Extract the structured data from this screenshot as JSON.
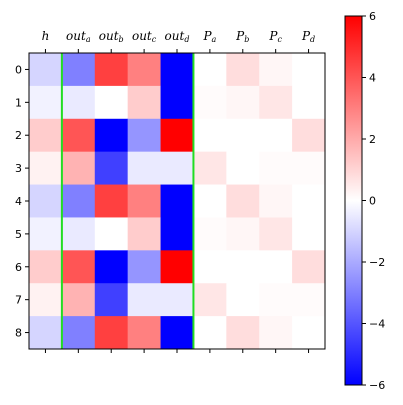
{
  "chart_data": {
    "type": "heatmap",
    "colormap": "bwr",
    "x_labels": [
      {
        "base": "h",
        "sub": ""
      },
      {
        "base": "out",
        "sub": "a"
      },
      {
        "base": "out",
        "sub": "b"
      },
      {
        "base": "out",
        "sub": "c"
      },
      {
        "base": "out",
        "sub": "d"
      },
      {
        "base": "P",
        "sub": "a"
      },
      {
        "base": "P",
        "sub": "b"
      },
      {
        "base": "P",
        "sub": "c"
      },
      {
        "base": "P",
        "sub": "d"
      }
    ],
    "y_labels": [
      "0",
      "1",
      "2",
      "3",
      "4",
      "5",
      "6",
      "7",
      "8"
    ],
    "values": [
      [
        -1.0,
        -3.0,
        4.5,
        3.0,
        -6.0,
        0.0,
        0.8,
        0.2,
        0.0
      ],
      [
        -0.3,
        -0.5,
        0.0,
        1.2,
        -6.0,
        0.1,
        0.2,
        0.6,
        0.0
      ],
      [
        1.2,
        4.0,
        -6.0,
        -2.5,
        6.0,
        0.0,
        0.0,
        0.0,
        0.8
      ],
      [
        0.3,
        1.8,
        -4.5,
        -0.5,
        -0.5,
        0.6,
        0.0,
        0.1,
        0.1
      ],
      [
        -1.0,
        -3.0,
        4.5,
        3.0,
        -6.0,
        0.0,
        0.8,
        0.2,
        0.0
      ],
      [
        -0.3,
        -0.5,
        0.0,
        1.2,
        -6.0,
        0.1,
        0.2,
        0.6,
        0.0
      ],
      [
        1.2,
        4.0,
        -6.0,
        -2.5,
        6.0,
        0.0,
        0.0,
        0.0,
        0.8
      ],
      [
        0.3,
        1.8,
        -4.5,
        -0.5,
        -0.5,
        0.6,
        0.0,
        0.1,
        0.1
      ],
      [
        -1.0,
        -3.0,
        4.5,
        3.0,
        -6.0,
        0.0,
        0.8,
        0.2,
        0.0
      ]
    ],
    "vmin": -6,
    "vmax": 6,
    "colorbar_ticks": [
      "6",
      "4",
      "2",
      "0",
      "−2",
      "−4",
      "−6"
    ],
    "colorbar_tick_values": [
      6,
      4,
      2,
      0,
      -2,
      -4,
      -6
    ],
    "separator_lines_after_column_index": [
      0,
      4
    ],
    "separator_color": "#22dd22",
    "x_tick_position": "top",
    "grid": false,
    "title": "",
    "xlabel": "",
    "ylabel": ""
  }
}
